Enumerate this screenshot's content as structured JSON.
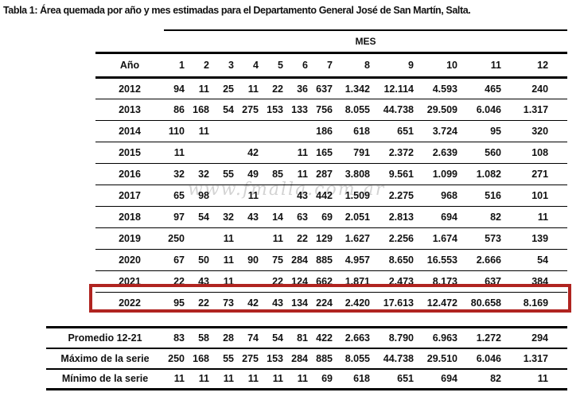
{
  "title": "Tabla 1: Área quemada por año y mes estimadas para el Departamento General José de San Martín, Salta.",
  "watermark": "www.fmalla.com.ar",
  "colors": {
    "highlight_border": "#b02420",
    "text": "#111111",
    "rule": "#000000"
  },
  "table": {
    "group_header": "MES",
    "year_header": "Año",
    "month_headers": [
      "1",
      "2",
      "3",
      "4",
      "5",
      "6",
      "7",
      "8",
      "9",
      "10",
      "11",
      "12"
    ],
    "rows": [
      {
        "year": "2012",
        "highlighted": false,
        "values": [
          "94",
          "11",
          "25",
          "11",
          "22",
          "36",
          "637",
          "1.342",
          "12.114",
          "4.593",
          "465",
          "240"
        ]
      },
      {
        "year": "2013",
        "highlighted": false,
        "values": [
          "86",
          "168",
          "54",
          "275",
          "153",
          "133",
          "756",
          "8.055",
          "44.738",
          "29.509",
          "6.046",
          "1.317"
        ]
      },
      {
        "year": "2014",
        "highlighted": false,
        "values": [
          "110",
          "11",
          "",
          "",
          "",
          "",
          "186",
          "618",
          "651",
          "3.724",
          "95",
          "320"
        ]
      },
      {
        "year": "2015",
        "highlighted": false,
        "values": [
          "11",
          "",
          "",
          "42",
          "",
          "11",
          "165",
          "791",
          "2.372",
          "2.639",
          "560",
          "108"
        ]
      },
      {
        "year": "2016",
        "highlighted": false,
        "values": [
          "32",
          "32",
          "55",
          "49",
          "85",
          "11",
          "287",
          "3.808",
          "9.561",
          "1.099",
          "1.082",
          "271"
        ]
      },
      {
        "year": "2017",
        "highlighted": false,
        "values": [
          "65",
          "98",
          "",
          "11",
          "",
          "43",
          "442",
          "1.509",
          "2.275",
          "968",
          "516",
          "101"
        ]
      },
      {
        "year": "2018",
        "highlighted": false,
        "values": [
          "97",
          "54",
          "32",
          "43",
          "14",
          "63",
          "69",
          "2.051",
          "2.813",
          "694",
          "82",
          "11"
        ]
      },
      {
        "year": "2019",
        "highlighted": false,
        "values": [
          "250",
          "",
          "11",
          "",
          "11",
          "22",
          "129",
          "1.627",
          "2.256",
          "1.674",
          "573",
          "139"
        ]
      },
      {
        "year": "2020",
        "highlighted": false,
        "values": [
          "67",
          "50",
          "11",
          "90",
          "75",
          "284",
          "885",
          "4.957",
          "8.650",
          "16.553",
          "2.666",
          "54"
        ]
      },
      {
        "year": "2021",
        "highlighted": false,
        "values": [
          "22",
          "43",
          "11",
          "",
          "22",
          "124",
          "662",
          "1.871",
          "2.473",
          "8.173",
          "637",
          "384"
        ]
      },
      {
        "year": "2022",
        "highlighted": true,
        "values": [
          "95",
          "22",
          "73",
          "42",
          "43",
          "134",
          "224",
          "2.420",
          "17.613",
          "12.472",
          "80.658",
          "8.169"
        ]
      }
    ],
    "summary_rows": [
      {
        "label": "Promedio 12-21",
        "values": [
          "83",
          "58",
          "28",
          "74",
          "54",
          "81",
          "422",
          "2.663",
          "8.790",
          "6.963",
          "1.272",
          "294"
        ]
      },
      {
        "label": "Máximo de la serie",
        "values": [
          "250",
          "168",
          "55",
          "275",
          "153",
          "284",
          "885",
          "8.055",
          "44.738",
          "29.510",
          "6.046",
          "1.317"
        ]
      },
      {
        "label": "Mínimo de la serie",
        "values": [
          "11",
          "11",
          "11",
          "11",
          "11",
          "11",
          "69",
          "618",
          "651",
          "694",
          "82",
          "11"
        ]
      }
    ]
  }
}
